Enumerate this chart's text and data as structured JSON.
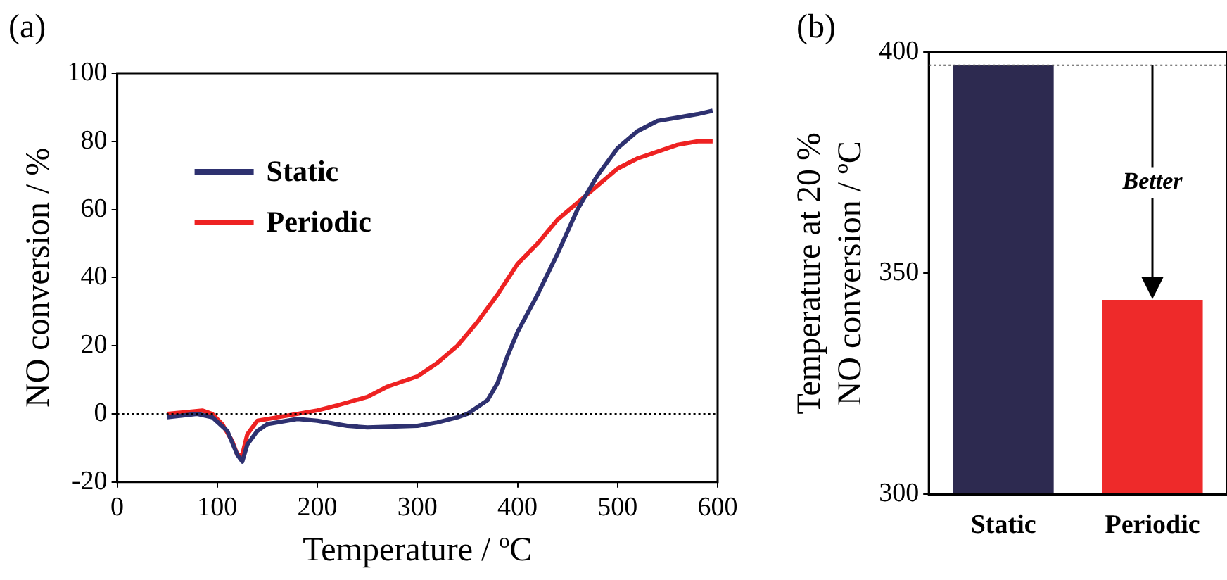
{
  "chart_data": [
    {
      "type": "line",
      "title": "(a)",
      "xlabel": "Temperature / ºC",
      "ylabel": "NO conversion / %",
      "xlim": [
        0,
        600
      ],
      "ylim": [
        -20,
        100
      ],
      "xticks": [
        0,
        100,
        200,
        300,
        400,
        500,
        600
      ],
      "yticks": [
        -20,
        0,
        20,
        40,
        60,
        80,
        100
      ],
      "legend": "top left",
      "grid": false,
      "marker": "none",
      "line_style": "solid",
      "ref_lines": [
        {
          "axis": "y",
          "value": 0,
          "line_style": "dotted",
          "color": "#000000"
        }
      ],
      "series": [
        {
          "name": "Static",
          "color": "#2e3170",
          "x": [
            50,
            80,
            95,
            110,
            120,
            125,
            130,
            140,
            150,
            180,
            200,
            230,
            250,
            300,
            320,
            340,
            350,
            370,
            380,
            390,
            400,
            420,
            440,
            460,
            480,
            500,
            520,
            540,
            560,
            580,
            595
          ],
          "values": [
            -1,
            0,
            -1,
            -5,
            -12,
            -14,
            -9,
            -5,
            -3,
            -1.5,
            -2,
            -3.5,
            -4,
            -3.5,
            -2.5,
            -1,
            0,
            4,
            9,
            17,
            24,
            35,
            47,
            60,
            70,
            78,
            83,
            86,
            87,
            88,
            89
          ]
        },
        {
          "name": "Periodic",
          "color": "#ee2222",
          "x": [
            50,
            85,
            95,
            105,
            115,
            120,
            125,
            130,
            140,
            160,
            200,
            220,
            250,
            270,
            300,
            320,
            340,
            360,
            380,
            400,
            420,
            440,
            460,
            480,
            500,
            520,
            540,
            560,
            580,
            595
          ],
          "values": [
            0,
            1,
            0,
            -3,
            -8,
            -12,
            -12,
            -6,
            -2,
            -1,
            1,
            2.5,
            5,
            8,
            11,
            15,
            20,
            27,
            35,
            44,
            50,
            57,
            62,
            67,
            72,
            75,
            77,
            79,
            80,
            80
          ]
        }
      ]
    },
    {
      "type": "bar",
      "title": "(b)",
      "ylabel": "Temperature at 20 %\nNO conversion / ºC",
      "categories": [
        "Static",
        "Periodic"
      ],
      "values": [
        397,
        344
      ],
      "colors": [
        "#2d2a50",
        "#ee2a2a"
      ],
      "ylim": [
        300,
        400
      ],
      "yticks": [
        300,
        350,
        400
      ],
      "grid": false,
      "legend": false,
      "ref_lines": [
        {
          "axis": "y",
          "value": 397,
          "line_style": "dotted",
          "color": "#555555"
        }
      ],
      "annotations": [
        "Better"
      ]
    }
  ]
}
